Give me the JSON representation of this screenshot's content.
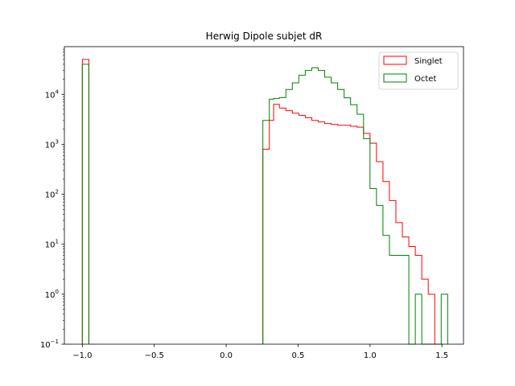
{
  "chart_data": {
    "type": "histogram-step",
    "title": "Herwig Dipole subjet dR",
    "xlabel": "",
    "ylabel": "",
    "xlim": [
      -1.125,
      1.65
    ],
    "ylim": [
      0.1,
      90000
    ],
    "yscale": "log",
    "x_ticks": [
      -1.0,
      -0.5,
      0.0,
      0.5,
      1.0,
      1.5
    ],
    "x_tick_labels": [
      "−1.0",
      "−0.5",
      "0.0",
      "0.5",
      "1.0",
      "1.5"
    ],
    "y_ticks": [
      0.1,
      1,
      10,
      100,
      1000,
      10000
    ],
    "y_tick_labels": [
      {
        "base": "10",
        "exp": "−1"
      },
      {
        "base": "10",
        "exp": "0"
      },
      {
        "base": "10",
        "exp": "1"
      },
      {
        "base": "10",
        "exp": "2"
      },
      {
        "base": "10",
        "exp": "3"
      },
      {
        "base": "10",
        "exp": "4"
      }
    ],
    "grid": false,
    "legend_position": "upper right",
    "series": [
      {
        "name": "Singlet",
        "color": "#ff0000",
        "bins": [
          {
            "x0": -1.0,
            "x1": -0.955,
            "y": 50000
          },
          {
            "x0": 0.255,
            "x1": 0.3,
            "y": 800
          },
          {
            "x0": 0.3,
            "x1": 0.33,
            "y": 3000
          },
          {
            "x0": 0.33,
            "x1": 0.37,
            "y": 6300
          },
          {
            "x0": 0.37,
            "x1": 0.415,
            "y": 5300
          },
          {
            "x0": 0.415,
            "x1": 0.46,
            "y": 4700
          },
          {
            "x0": 0.46,
            "x1": 0.505,
            "y": 4200
          },
          {
            "x0": 0.505,
            "x1": 0.55,
            "y": 3800
          },
          {
            "x0": 0.55,
            "x1": 0.595,
            "y": 3400
          },
          {
            "x0": 0.595,
            "x1": 0.64,
            "y": 3000
          },
          {
            "x0": 0.64,
            "x1": 0.685,
            "y": 2800
          },
          {
            "x0": 0.685,
            "x1": 0.73,
            "y": 2600
          },
          {
            "x0": 0.73,
            "x1": 0.775,
            "y": 2500
          },
          {
            "x0": 0.775,
            "x1": 0.82,
            "y": 2400
          },
          {
            "x0": 0.82,
            "x1": 0.865,
            "y": 2400
          },
          {
            "x0": 0.865,
            "x1": 0.91,
            "y": 2300
          },
          {
            "x0": 0.91,
            "x1": 0.955,
            "y": 2200
          },
          {
            "x0": 0.955,
            "x1": 1.0,
            "y": 1650
          },
          {
            "x0": 1.0,
            "x1": 1.045,
            "y": 1050
          },
          {
            "x0": 1.045,
            "x1": 1.09,
            "y": 450
          },
          {
            "x0": 1.09,
            "x1": 1.135,
            "y": 180
          },
          {
            "x0": 1.135,
            "x1": 1.18,
            "y": 75
          },
          {
            "x0": 1.18,
            "x1": 1.225,
            "y": 27
          },
          {
            "x0": 1.225,
            "x1": 1.27,
            "y": 14
          },
          {
            "x0": 1.27,
            "x1": 1.315,
            "y": 9
          },
          {
            "x0": 1.315,
            "x1": 1.36,
            "y": 6
          },
          {
            "x0": 1.36,
            "x1": 1.405,
            "y": 2
          },
          {
            "x0": 1.405,
            "x1": 1.45,
            "y": 1
          }
        ]
      },
      {
        "name": "Octet",
        "color": "#008000",
        "bins": [
          {
            "x0": -1.0,
            "x1": -0.955,
            "y": 40000
          },
          {
            "x0": 0.255,
            "x1": 0.3,
            "y": 3000
          },
          {
            "x0": 0.3,
            "x1": 0.33,
            "y": 8000
          },
          {
            "x0": 0.33,
            "x1": 0.37,
            "y": 8300
          },
          {
            "x0": 0.37,
            "x1": 0.415,
            "y": 8600
          },
          {
            "x0": 0.415,
            "x1": 0.46,
            "y": 12500
          },
          {
            "x0": 0.46,
            "x1": 0.505,
            "y": 17000
          },
          {
            "x0": 0.505,
            "x1": 0.55,
            "y": 24000
          },
          {
            "x0": 0.55,
            "x1": 0.595,
            "y": 30000
          },
          {
            "x0": 0.595,
            "x1": 0.64,
            "y": 34000
          },
          {
            "x0": 0.64,
            "x1": 0.685,
            "y": 30000
          },
          {
            "x0": 0.685,
            "x1": 0.73,
            "y": 22000
          },
          {
            "x0": 0.73,
            "x1": 0.775,
            "y": 17000
          },
          {
            "x0": 0.775,
            "x1": 0.82,
            "y": 12500
          },
          {
            "x0": 0.82,
            "x1": 0.865,
            "y": 8500
          },
          {
            "x0": 0.865,
            "x1": 0.91,
            "y": 6200
          },
          {
            "x0": 0.91,
            "x1": 0.955,
            "y": 4000
          },
          {
            "x0": 0.955,
            "x1": 1.0,
            "y": 1300
          },
          {
            "x0": 1.0,
            "x1": 1.045,
            "y": 130
          },
          {
            "x0": 1.045,
            "x1": 1.09,
            "y": 60
          },
          {
            "x0": 1.09,
            "x1": 1.135,
            "y": 15
          },
          {
            "x0": 1.135,
            "x1": 1.18,
            "y": 6
          },
          {
            "x0": 1.18,
            "x1": 1.225,
            "y": 6
          },
          {
            "x0": 1.225,
            "x1": 1.27,
            "y": 6
          },
          {
            "x0": 1.27,
            "x1": 1.315,
            "y": 0
          },
          {
            "x0": 1.315,
            "x1": 1.36,
            "y": 1
          },
          {
            "x0": 1.36,
            "x1": 1.405,
            "y": 0
          },
          {
            "x0": 1.405,
            "x1": 1.45,
            "y": 0
          },
          {
            "x0": 1.45,
            "x1": 1.495,
            "y": 0
          },
          {
            "x0": 1.495,
            "x1": 1.54,
            "y": 1
          }
        ]
      }
    ]
  }
}
